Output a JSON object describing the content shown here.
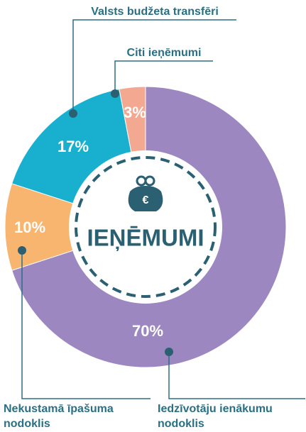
{
  "chart_data": {
    "type": "donut",
    "categories": [
      "Iedzīvotāju ienākumu nodoklis",
      "Nekustamā īpašuma nodoklis",
      "Valsts budžeta transfēri",
      "Citi ieņēmumi"
    ],
    "values": [
      70,
      10,
      17,
      3
    ],
    "value_labels": [
      "70%",
      "10%",
      "17%",
      "3%"
    ],
    "colors": [
      "#9d87c1",
      "#f7b56f",
      "#19b0cf",
      "#f2a891"
    ],
    "center_label": "IEŅĒMUMI",
    "icon_text": "€"
  }
}
